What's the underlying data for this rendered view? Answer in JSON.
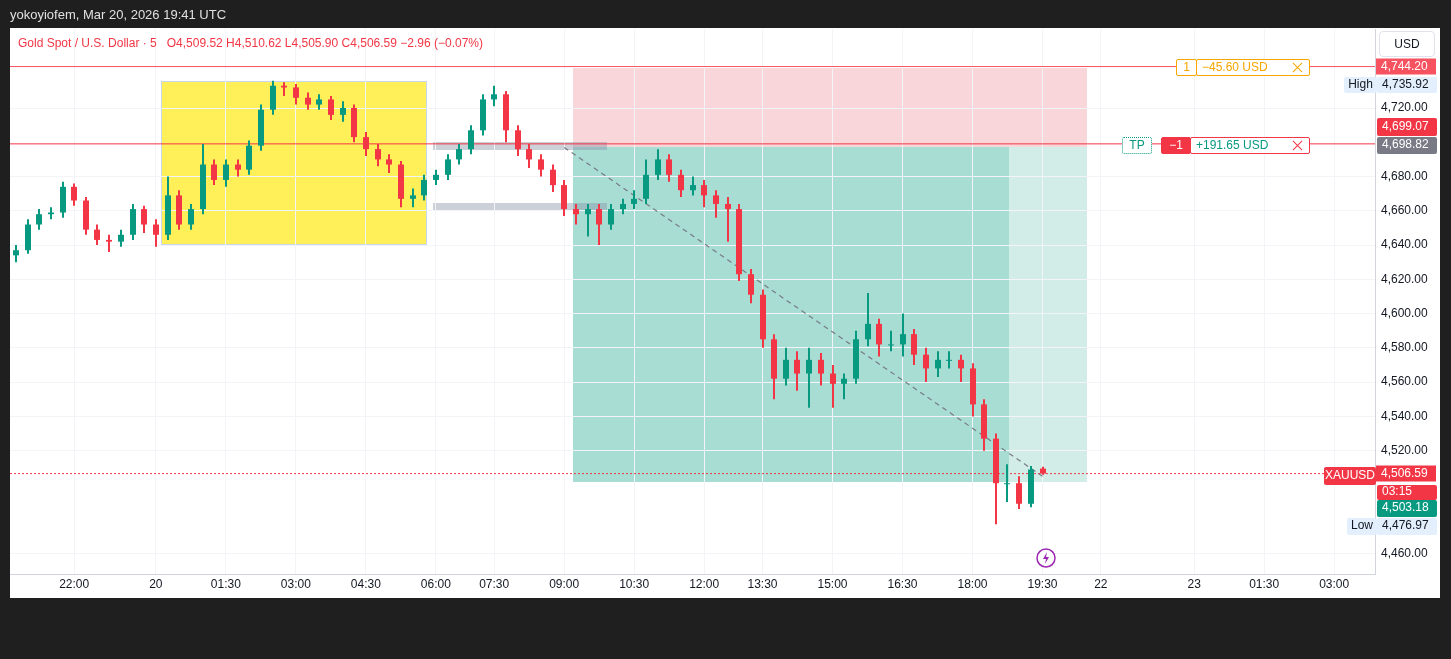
{
  "chart_data": {
    "type": "candlestick",
    "title": "Gold Spot / U.S. Dollar · 5",
    "subtitle": "O4,509.52  H4,510.62  L4,505.90  C4,506.59  −2.96 (−0.07%)",
    "ylabel": "USD",
    "categories": [
      null,
      null,
      null,
      null,
      null,
      "22:00",
      null,
      null,
      null,
      null,
      null,
      null,
      "20",
      null,
      null,
      null,
      null,
      null,
      "01:30",
      null,
      null,
      null,
      null,
      null,
      "03:00",
      null,
      null,
      null,
      null,
      null,
      "04:30",
      null,
      null,
      null,
      null,
      null,
      "06:00",
      null,
      null,
      null,
      null,
      "07:30",
      null,
      null,
      null,
      null,
      null,
      "09:00",
      null,
      null,
      null,
      null,
      null,
      "10:30",
      null,
      null,
      null,
      null,
      null,
      "12:00",
      null,
      null,
      null,
      null,
      "13:30",
      null,
      null,
      null,
      null,
      null,
      "15:00",
      null,
      null,
      null,
      null,
      null,
      "16:30",
      null,
      null,
      null,
      null,
      null,
      "18:00",
      null,
      null,
      null,
      null,
      null,
      "19:30",
      null,
      null,
      null,
      null,
      "22",
      null,
      null,
      null,
      null,
      null,
      null,
      null,
      "23",
      null,
      null,
      null,
      null,
      null,
      "01:30",
      null,
      null,
      null,
      null,
      null,
      "03:00",
      null,
      null,
      null
    ],
    "ohlc": [
      [
        4634,
        4640,
        4630,
        4637
      ],
      [
        4637,
        4655,
        4635,
        4652
      ],
      [
        4652,
        4661,
        4649,
        4658
      ],
      [
        4658,
        4662,
        4655,
        4659
      ],
      [
        4659,
        4677,
        4656,
        4674
      ],
      [
        4674,
        4676,
        4663,
        4666
      ],
      [
        4666,
        4668,
        4646,
        4649
      ],
      [
        4649,
        4652,
        4640,
        4643
      ],
      [
        4643,
        4646,
        4636,
        4642
      ],
      [
        4642,
        4649,
        4639,
        4646
      ],
      [
        4646,
        4664,
        4643,
        4661
      ],
      [
        4661,
        4663,
        4647,
        4652
      ],
      [
        4652,
        4655,
        4639,
        4646
      ],
      [
        4646,
        4680,
        4643,
        4669
      ],
      [
        4669,
        4672,
        4649,
        4652
      ],
      [
        4652,
        4664,
        4649,
        4661
      ],
      [
        4661,
        4699,
        4658,
        4687
      ],
      [
        4687,
        4690,
        4675,
        4678
      ],
      [
        4678,
        4690,
        4674,
        4687
      ],
      [
        4687,
        4690,
        4680,
        4684
      ],
      [
        4684,
        4701,
        4681,
        4698
      ],
      [
        4698,
        4722,
        4695,
        4719
      ],
      [
        4719,
        4735.92,
        4716,
        4733
      ],
      [
        4733,
        4735,
        4727,
        4732
      ],
      [
        4732,
        4734,
        4722,
        4726
      ],
      [
        4726,
        4729,
        4719,
        4722
      ],
      [
        4722,
        4728,
        4719,
        4725
      ],
      [
        4725,
        4727,
        4713,
        4716
      ],
      [
        4716,
        4724,
        4712,
        4720
      ],
      [
        4720,
        4722,
        4700,
        4703
      ],
      [
        4703,
        4706,
        4692,
        4696
      ],
      [
        4696,
        4699,
        4686,
        4690
      ],
      [
        4690,
        4693,
        4682,
        4687
      ],
      [
        4687,
        4689,
        4662,
        4667
      ],
      [
        4667,
        4673,
        4662,
        4669
      ],
      [
        4669,
        4681,
        4666,
        4678
      ],
      [
        4678,
        4684,
        4675,
        4681
      ],
      [
        4681,
        4693,
        4678,
        4690
      ],
      [
        4690,
        4699,
        4687,
        4696
      ],
      [
        4696,
        4710,
        4693,
        4707
      ],
      [
        4707,
        4728,
        4704,
        4725
      ],
      [
        4725,
        4733,
        4721,
        4728
      ],
      [
        4728,
        4730,
        4700,
        4707
      ],
      [
        4707,
        4710,
        4692,
        4696
      ],
      [
        4696,
        4699,
        4685,
        4690
      ],
      [
        4690,
        4693,
        4680,
        4684
      ],
      [
        4684,
        4687,
        4671,
        4675
      ],
      [
        4675,
        4678,
        4657,
        4661
      ],
      [
        4661,
        4664,
        4652,
        4658
      ],
      [
        4658,
        4664,
        4645,
        4661
      ],
      [
        4661,
        4664,
        4640,
        4652
      ],
      [
        4652,
        4664,
        4649,
        4661
      ],
      [
        4661,
        4667,
        4658,
        4664
      ],
      [
        4664,
        4672,
        4661,
        4667
      ],
      [
        4667,
        4690,
        4664,
        4681
      ],
      [
        4681,
        4696,
        4678,
        4690
      ],
      [
        4690,
        4693,
        4677,
        4681
      ],
      [
        4681,
        4684,
        4668,
        4672
      ],
      [
        4672,
        4680,
        4669,
        4675
      ],
      [
        4675,
        4678,
        4662,
        4669
      ],
      [
        4669,
        4672,
        4656,
        4664
      ],
      [
        4664,
        4668,
        4642,
        4661
      ],
      [
        4661,
        4664,
        4619,
        4623
      ],
      [
        4623,
        4626,
        4606,
        4611
      ],
      [
        4611,
        4614,
        4580,
        4585
      ],
      [
        4585,
        4588,
        4550,
        4562
      ],
      [
        4562,
        4580,
        4558,
        4573
      ],
      [
        4573,
        4578,
        4555,
        4565
      ],
      [
        4565,
        4580,
        4545,
        4573
      ],
      [
        4573,
        4577,
        4558,
        4565
      ],
      [
        4565,
        4570,
        4545,
        4559
      ],
      [
        4559,
        4565,
        4550,
        4562
      ],
      [
        4562,
        4590,
        4559,
        4585
      ],
      [
        4585,
        4612,
        4581,
        4594
      ],
      [
        4594,
        4597,
        4575,
        4582
      ],
      [
        4582,
        4590,
        4578,
        4582
      ],
      [
        4582,
        4600,
        4575,
        4588
      ],
      [
        4588,
        4591,
        4570,
        4576
      ],
      [
        4576,
        4580,
        4560,
        4568
      ],
      [
        4568,
        4578,
        4563,
        4573
      ],
      [
        4573,
        4578,
        4568,
        4573
      ],
      [
        4573,
        4576,
        4560,
        4568
      ],
      [
        4568,
        4571,
        4540,
        4547
      ],
      [
        4547,
        4550,
        4520,
        4527
      ],
      [
        4527,
        4530,
        4476.97,
        4501
      ],
      [
        4501,
        4512,
        4490,
        4501
      ],
      [
        4501,
        4505,
        4486,
        4489
      ],
      [
        4489,
        4511,
        4487,
        4509
      ],
      [
        4509.52,
        4510.62,
        4505.9,
        4506.59
      ],
      null,
      null,
      null,
      null,
      null,
      null,
      null,
      null,
      null,
      null,
      null,
      null,
      null,
      null,
      null,
      null,
      null,
      null,
      null,
      null,
      null,
      null,
      null,
      null,
      null,
      null,
      null,
      null
    ],
    "ylim": [
      4448,
      4766
    ],
    "yticks": [
      {
        "value": 4460,
        "label": "4,460.00"
      },
      {
        "value": 4520,
        "label": "4,520.00"
      },
      {
        "value": 4540,
        "label": "4,540.00"
      },
      {
        "value": 4560,
        "label": "4,560.00"
      },
      {
        "value": 4580,
        "label": "4,580.00"
      },
      {
        "value": 4600,
        "label": "4,600.00"
      },
      {
        "value": 4620,
        "label": "4,620.00"
      },
      {
        "value": 4640,
        "label": "4,640.00"
      },
      {
        "value": 4660,
        "label": "4,660.00"
      },
      {
        "value": 4680,
        "label": "4,680.00"
      },
      {
        "value": 4720,
        "label": "4,720.00"
      }
    ],
    "series": [
      {
        "type": "line",
        "x": [
          "09:00",
          "19:30"
        ],
        "values": [
          4697,
          4505
        ],
        "color": "#787b86",
        "line_style": "dashed"
      }
    ],
    "grid": true,
    "ref_lines": [
      {
        "axis": "y",
        "value": 4744.2,
        "label": "4,744.20",
        "color": "#f7525f"
      },
      {
        "axis": "y",
        "value": 4699.07,
        "color": "#f23645"
      },
      {
        "axis": "y",
        "value": 4506.59,
        "label": "4,506.59",
        "color": "#f23645",
        "line_style": "dotted"
      }
    ],
    "annotations": [
      "yokoyiofem, Mar 20, 2026 19:41 UTC",
      "1",
      "−45.60 USD",
      "TP",
      "−1",
      "+191.65 USD",
      "High",
      "4,735.92",
      "4,698.82",
      "4,699.07",
      "XAUUSD",
      "03:15",
      "4,503.18",
      "Low",
      "4,476.97"
    ]
  }
}
